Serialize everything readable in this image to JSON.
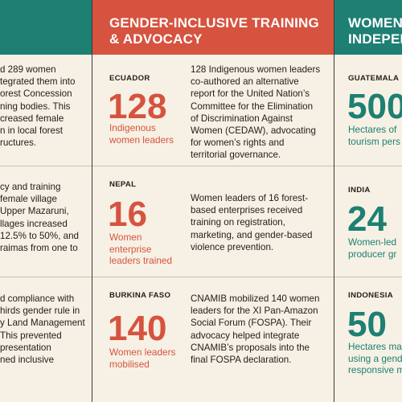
{
  "left": {
    "title": "",
    "rows": [
      "d 289 women\ntegrated them into\norest Concession\nning bodies. This\ncreased female\nn in local forest\nructures.",
      "cy and training\nfemale village\nUpper Mazaruni,\nllages increased\n12.5% to 50%, and\nraimas from one to",
      "d compliance with\nhirds gender rule in\ny Land Management\nThis prevented\npresentation\nned inclusive"
    ]
  },
  "middle": {
    "title": "GENDER-INCLUSIVE TRAINING\n& ADVOCACY",
    "rows": [
      {
        "country": "ECUADOR",
        "number": "128",
        "caption": "Indigenous\nwomen leaders",
        "description": "128 Indigenous women leaders\nco-authored an alternative\nreport for the United Nation’s\nCommittee for the Elimination\nof Discrimination Against\nWomen (CEDAW), advocating\nfor women’s rights and\nterritorial governance."
      },
      {
        "country": "NEPAL",
        "number": "16",
        "caption": "Women\nenterprise\nleaders trained",
        "description": "Women leaders of 16 forest-\nbased enterprises received\ntraining on registration,\nmarketing, and gender-based\nviolence prevention."
      },
      {
        "country": "BURKINA FASO",
        "number": "140",
        "caption": "Women leaders\nmobilised",
        "description": "CNAMIB mobilized 140 women\nleaders for the XI Pan-Amazon\nSocial Forum (FOSPA). Their\nadvocacy helped integrate\nCNAMIB’s proposals into the\nfinal FOSPA declaration."
      }
    ]
  },
  "right": {
    "title": "WOMEN\nINDEPEN",
    "rows": [
      {
        "country": "GUATEMALA",
        "number": "500",
        "caption": "Hectares of\ntourism pers"
      },
      {
        "country": "INDIA",
        "number": "24",
        "caption": "Women-led\nproducer gr"
      },
      {
        "country": "INDONESIA",
        "number": "50",
        "caption": "Hectares ma\nusing a gend\nresponsive m"
      }
    ]
  },
  "colors": {
    "background": "#f6f1e4",
    "teal": "#1e7f73",
    "coral": "#d6533f",
    "text": "#26201b"
  }
}
